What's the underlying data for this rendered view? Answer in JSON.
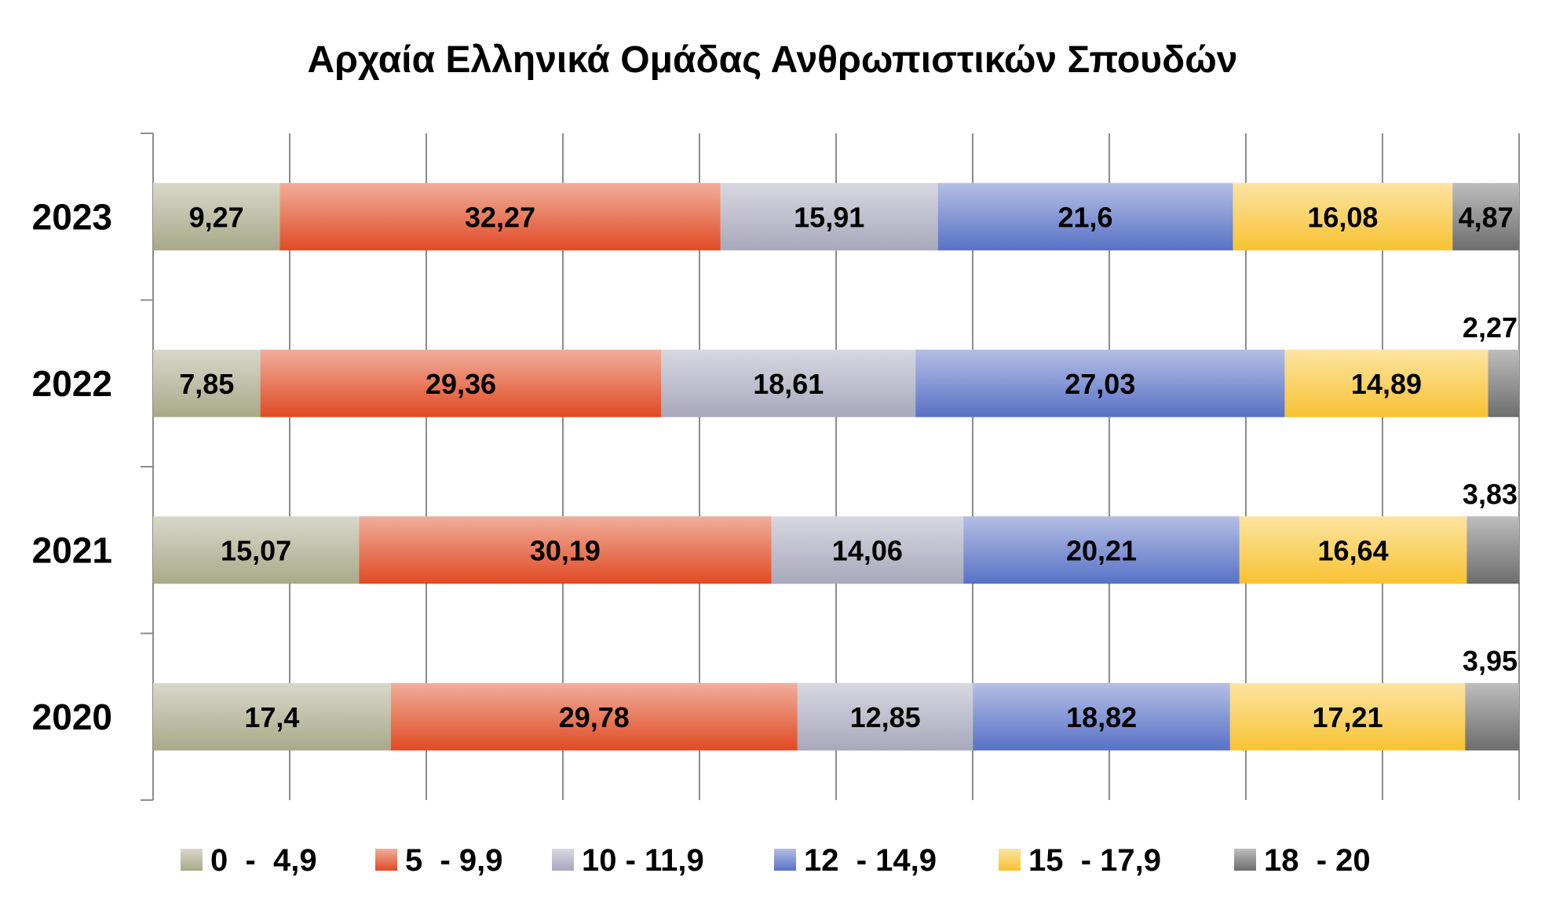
{
  "chart_data": {
    "type": "bar",
    "orientation": "horizontal",
    "stacked": "percent",
    "title": "Αρχαία Ελληνικά Ομάδας Ανθρωπιστικών Σπουδών",
    "categories": [
      "2023",
      "2022",
      "2021",
      "2020"
    ],
    "series": [
      {
        "name": "0  -  4,9",
        "values": [
          9.27,
          7.85,
          15.07,
          17.4
        ],
        "labels": [
          "9,27",
          "7,85",
          "15,07",
          "17,4"
        ],
        "color": "#a9a989"
      },
      {
        "name": "5  - 9,9",
        "values": [
          32.27,
          29.36,
          30.19,
          29.78
        ],
        "labels": [
          "32,27",
          "29,36",
          "30,19",
          "29,78"
        ],
        "color": "#e04a23"
      },
      {
        "name": "10 - 11,9",
        "values": [
          15.91,
          18.61,
          14.06,
          12.85
        ],
        "labels": [
          "15,91",
          "18,61",
          "14,06",
          "12,85"
        ],
        "color": "#a8a8bc"
      },
      {
        "name": "12  - 14,9",
        "values": [
          21.6,
          27.03,
          20.21,
          18.82
        ],
        "labels": [
          "21,6",
          "27,03",
          "20,21",
          "18,82"
        ],
        "color": "#5871c6"
      },
      {
        "name": "15  - 17,9",
        "values": [
          16.08,
          14.89,
          16.64,
          17.21
        ],
        "labels": [
          "16,08",
          "14,89",
          "16,64",
          "17,21"
        ],
        "color": "#f8c231"
      },
      {
        "name": "18  - 20",
        "values": [
          4.87,
          2.27,
          3.83,
          3.95
        ],
        "labels": [
          "4,87",
          "2,27",
          "3,83",
          "3,95"
        ],
        "color": "#6d6d6d"
      }
    ],
    "xlim": [
      0,
      100
    ],
    "grid": true,
    "legend_position": "bottom"
  }
}
